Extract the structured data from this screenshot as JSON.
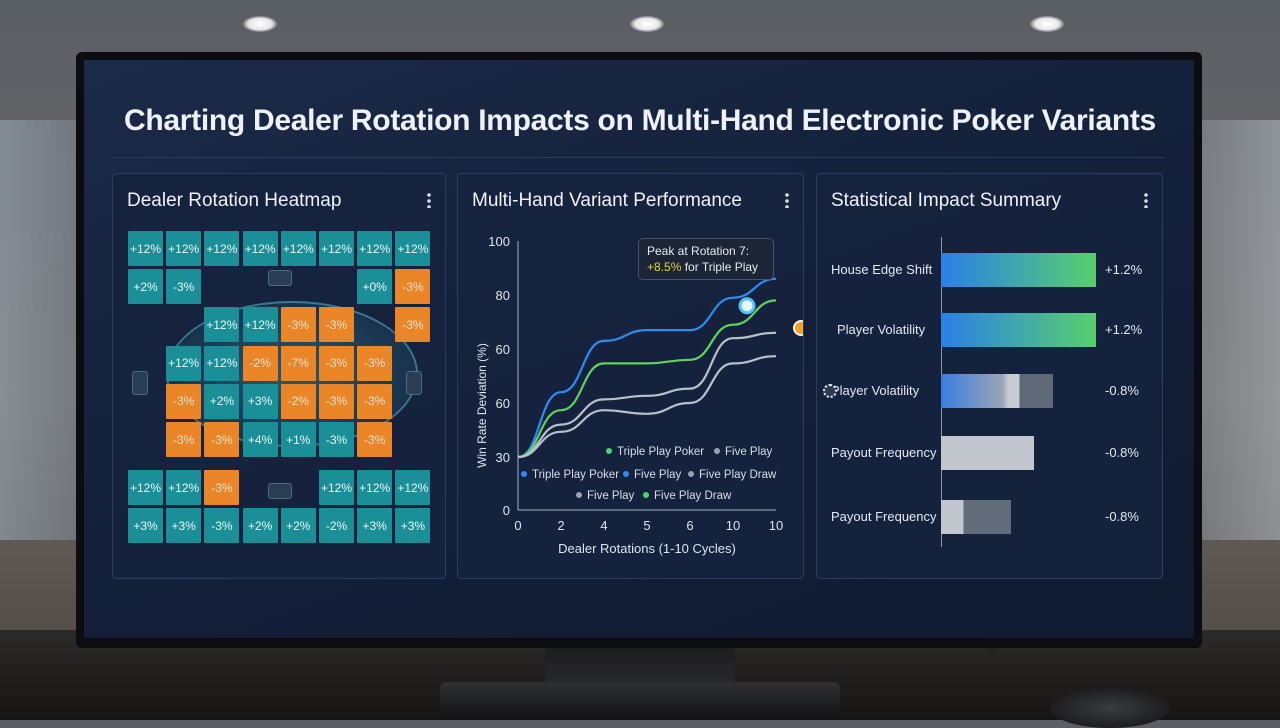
{
  "dashboard": {
    "title": "Charting Dealer Rotation Impacts on Multi-Hand Electronic Poker Variants"
  },
  "heatmap_panel": {
    "title": "Dealer Rotation Heatmap",
    "rows": [
      [
        {
          "v": "+12%",
          "c": "teal"
        },
        {
          "v": "+12%",
          "c": "teal"
        },
        {
          "v": "+12%",
          "c": "teal"
        },
        {
          "v": "+12%",
          "c": "teal"
        },
        {
          "v": "+12%",
          "c": "teal"
        },
        {
          "v": "+12%",
          "c": "teal"
        },
        {
          "v": "+12%",
          "c": "teal"
        },
        {
          "v": "+12%",
          "c": "teal"
        }
      ],
      [
        {
          "v": "+2%",
          "c": "teal"
        },
        {
          "v": "-3%",
          "c": "teal"
        },
        null,
        null,
        null,
        null,
        {
          "v": "+0%",
          "c": "teal"
        },
        {
          "v": "-3%",
          "c": "orange"
        }
      ],
      [
        null,
        null,
        {
          "v": "+12%",
          "c": "teal"
        },
        {
          "v": "+12%",
          "c": "teal"
        },
        {
          "v": "-3%",
          "c": "orange"
        },
        {
          "v": "-3%",
          "c": "orange"
        },
        null,
        {
          "v": "-3%",
          "c": "orange"
        }
      ],
      [
        null,
        {
          "v": "+12%",
          "c": "teal"
        },
        {
          "v": "+12%",
          "c": "teal"
        },
        {
          "v": "-2%",
          "c": "orange"
        },
        {
          "v": "-7%",
          "c": "orange"
        },
        {
          "v": "-3%",
          "c": "orange"
        },
        {
          "v": "-3%",
          "c": "orange"
        },
        null
      ],
      [
        null,
        {
          "v": "-3%",
          "c": "orange"
        },
        {
          "v": "+2%",
          "c": "teal"
        },
        {
          "v": "+3%",
          "c": "teal"
        },
        {
          "v": "-2%",
          "c": "orange"
        },
        {
          "v": "-3%",
          "c": "orange"
        },
        {
          "v": "-3%",
          "c": "orange"
        },
        null
      ],
      [
        null,
        {
          "v": "-3%",
          "c": "orange"
        },
        {
          "v": "-3%",
          "c": "orange"
        },
        {
          "v": "+4%",
          "c": "teal"
        },
        {
          "v": "+1%",
          "c": "teal"
        },
        {
          "v": "-3%",
          "c": "teal"
        },
        {
          "v": "-3%",
          "c": "orange"
        },
        null
      ],
      [
        {
          "v": "+12%",
          "c": "teal"
        },
        {
          "v": "+12%",
          "c": "teal"
        },
        {
          "v": "-3%",
          "c": "orange"
        },
        null,
        null,
        {
          "v": "+12%",
          "c": "teal"
        },
        {
          "v": "+12%",
          "c": "teal"
        },
        {
          "v": "+12%",
          "c": "teal"
        }
      ],
      [
        {
          "v": "+3%",
          "c": "teal"
        },
        {
          "v": "+3%",
          "c": "teal"
        },
        {
          "v": "-3%",
          "c": "teal"
        },
        {
          "v": "+2%",
          "c": "teal"
        },
        {
          "v": "+2%",
          "c": "teal"
        },
        {
          "v": "-2%",
          "c": "teal"
        },
        {
          "v": "+3%",
          "c": "teal"
        },
        {
          "v": "+3%",
          "c": "teal"
        }
      ]
    ]
  },
  "variant_panel": {
    "title": "Multi-Hand Variant Performance",
    "tooltip": {
      "line1": "Peak at Rotation 7:",
      "highlight": "+8.5%",
      "line2_rest": " for Triple Play"
    },
    "legend": [
      {
        "label": "Triple Play Poker",
        "color": "#4ad66d"
      },
      {
        "label": "Five Play",
        "color": "#9aa3ad"
      },
      {
        "label": "Triple Play Poker",
        "color": "#2e8cf0"
      },
      {
        "label": "Five Play",
        "color": "#2e8cf0"
      },
      {
        "label": "Five Play Draw",
        "color": "#9aa3ad"
      },
      {
        "label": "Five Play",
        "color": "#9aa3ad"
      },
      {
        "label": "Five Play Draw",
        "color": "#4ad66d"
      }
    ]
  },
  "chart_data": {
    "type": "line",
    "xlabel": "Dealer Rotations (1-10 Cycles)",
    "ylabel": "Win Rate Deviation (%)",
    "x_tick_labels": [
      "0",
      "2",
      "4",
      "5",
      "6",
      "10",
      "10"
    ],
    "y_tick_labels": [
      "0",
      "30",
      "60",
      "60",
      "80",
      "100"
    ],
    "series": [
      {
        "color": "#2e8cf0",
        "x": [
          0,
          2,
          4,
          5,
          6,
          10,
          10
        ],
        "y": [
          30,
          48,
          63,
          67,
          67,
          79,
          86
        ]
      },
      {
        "color": "#5fd35a",
        "x": [
          0,
          2,
          4,
          5,
          6,
          10,
          10
        ],
        "y": [
          30,
          43,
          56,
          56,
          57,
          69,
          78
        ]
      },
      {
        "color": "#b9c0c8",
        "x": [
          0,
          2,
          4,
          5,
          6,
          10,
          10
        ],
        "y": [
          30,
          39,
          46,
          47,
          49,
          64,
          66
        ]
      },
      {
        "color": "#b9c0c8",
        "x": [
          0,
          2,
          4,
          5,
          6,
          10,
          10
        ],
        "y": [
          30,
          37,
          43,
          42,
          45,
          56,
          58
        ]
      }
    ]
  },
  "stats_panel": {
    "title": "Statistical Impact Summary",
    "rows": [
      {
        "label": "House Edge Shift",
        "value": "+1.2%",
        "fill": 1.0,
        "style": "blue-green"
      },
      {
        "label": "Player Volatility",
        "value": "+1.2%",
        "fill": 1.0,
        "style": "blue-green"
      },
      {
        "label": "Player Volatility",
        "value": "-0.8%",
        "fill": 0.72,
        "style": "blue-grey"
      },
      {
        "label": "Payout Frequency",
        "value": "-0.8%",
        "fill": 0.6,
        "style": "grey"
      },
      {
        "label": "Payout Frequency",
        "value": "-0.8%",
        "fill": 0.45,
        "style": "grey-small"
      }
    ]
  }
}
